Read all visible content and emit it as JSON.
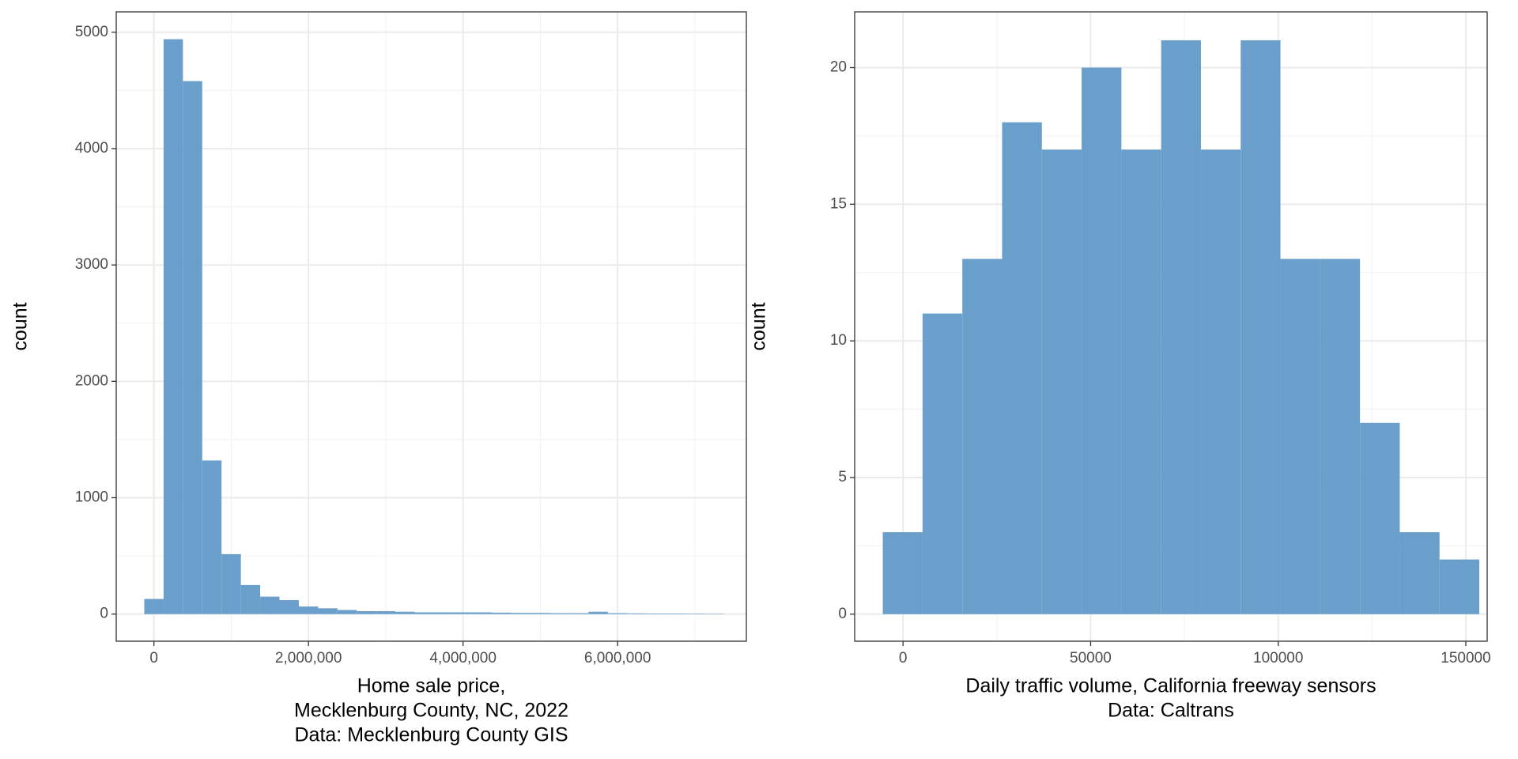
{
  "chart_data": [
    {
      "type": "histogram",
      "color": "#6a9fcb",
      "grid": true,
      "xlabel": [
        "Home sale price,",
        "Mecklenburg County, NC, 2022",
        "Data: Mecklenburg County GIS"
      ],
      "ylabel": "count",
      "bins": [
        -125000,
        125000,
        375000,
        625000,
        875000,
        1125000,
        1375000,
        1625000,
        1875000,
        2125000,
        2375000,
        2625000,
        2875000,
        3125000,
        3375000,
        3625000,
        3875000,
        4125000,
        4375000,
        4625000,
        4875000,
        5125000,
        5375000,
        5625000,
        5875000,
        6125000,
        6375000,
        6625000,
        6875000,
        7125000,
        7375000
      ],
      "values": [
        130,
        4940,
        4580,
        1320,
        515,
        250,
        150,
        120,
        65,
        50,
        35,
        25,
        25,
        20,
        15,
        15,
        15,
        15,
        12,
        10,
        10,
        8,
        8,
        20,
        8,
        6,
        5,
        5,
        4,
        3
      ],
      "xlim": [
        -488000,
        7666000
      ],
      "ylim": [
        -233,
        5175
      ],
      "xticks": [
        0,
        {
          "value": 2000000,
          "label": "2,000,000"
        },
        {
          "value": 4000000,
          "label": "4,000,000"
        },
        {
          "value": 6000000,
          "label": "6,000,000"
        }
      ],
      "yticks": [
        0,
        1000,
        2000,
        3000,
        4000,
        5000
      ]
    },
    {
      "type": "histogram",
      "color": "#6a9fcb",
      "grid": true,
      "xlabel": [
        "Daily traffic volume, California freeway sensors",
        "Data: Caltrans"
      ],
      "ylabel": "count",
      "bins": [
        -5400,
        5200,
        15800,
        26400,
        37000,
        47600,
        58200,
        68800,
        79400,
        90000,
        100600,
        111200,
        121800,
        132400,
        143000,
        153600
      ],
      "values": [
        3,
        11,
        13,
        18,
        17,
        20,
        17,
        21,
        17,
        21,
        13,
        13,
        7,
        3,
        2
      ],
      "xlim": [
        -12900,
        155700
      ],
      "ylim": [
        -0.99,
        22.04
      ],
      "xticks": [
        0,
        50000,
        100000,
        150000
      ],
      "yticks": [
        0,
        5,
        10,
        15,
        20
      ]
    }
  ]
}
